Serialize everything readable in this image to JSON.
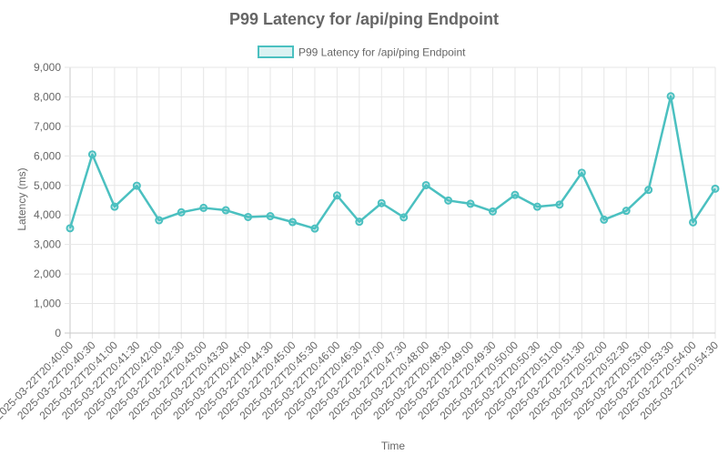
{
  "chart_data": {
    "type": "line",
    "title": "P99 Latency for /api/ping Endpoint",
    "xlabel": "Time",
    "ylabel": "Latency (ms)",
    "ylim": [
      0,
      9000
    ],
    "y_ticks": [
      "0",
      "1,000",
      "2,000",
      "3,000",
      "4,000",
      "5,000",
      "6,000",
      "7,000",
      "8,000",
      "9,000"
    ],
    "grid": true,
    "legend_position": "top",
    "line_color": "#4bc0c0",
    "categories": [
      "2025-03-22T20:40:00",
      "2025-03-22T20:40:30",
      "2025-03-22T20:41:00",
      "2025-03-22T20:41:30",
      "2025-03-22T20:42:00",
      "2025-03-22T20:42:30",
      "2025-03-22T20:43:00",
      "2025-03-22T20:43:30",
      "2025-03-22T20:44:00",
      "2025-03-22T20:44:30",
      "2025-03-22T20:45:00",
      "2025-03-22T20:45:30",
      "2025-03-22T20:46:00",
      "2025-03-22T20:46:30",
      "2025-03-22T20:47:00",
      "2025-03-22T20:47:30",
      "2025-03-22T20:48:00",
      "2025-03-22T20:48:30",
      "2025-03-22T20:49:00",
      "2025-03-22T20:49:30",
      "2025-03-22T20:50:00",
      "2025-03-22T20:50:30",
      "2025-03-22T20:51:00",
      "2025-03-22T20:51:30",
      "2025-03-22T20:52:00",
      "2025-03-22T20:52:30",
      "2025-03-22T20:53:00",
      "2025-03-22T20:53:30",
      "2025-03-22T20:54:00",
      "2025-03-22T20:54:30"
    ],
    "series": [
      {
        "name": "P99 Latency for /api/ping Endpoint",
        "values": [
          3550,
          6050,
          4280,
          4990,
          3820,
          4090,
          4240,
          4160,
          3930,
          3960,
          3760,
          3540,
          4660,
          3770,
          4400,
          3920,
          5010,
          4490,
          4380,
          4120,
          4680,
          4280,
          4350,
          5430,
          3840,
          4140,
          4850,
          8020,
          3750,
          4890
        ]
      }
    ]
  }
}
